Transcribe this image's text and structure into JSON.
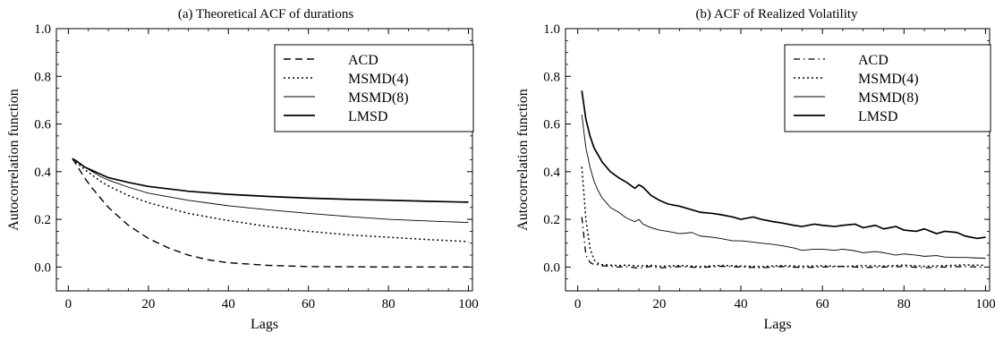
{
  "chart_data": [
    {
      "type": "line",
      "title": "(a) Theoretical ACF of durations",
      "xlabel": "Lags",
      "ylabel": "Autocorrelation function",
      "xlim": [
        -3,
        101
      ],
      "ylim": [
        -0.1,
        1.0
      ],
      "xticks": [
        0,
        20,
        40,
        60,
        80,
        100
      ],
      "yticks": [
        0.0,
        0.2,
        0.4,
        0.6,
        0.8,
        1.0
      ],
      "xtick_labels": [
        "0",
        "20",
        "40",
        "60",
        "80",
        "100"
      ],
      "ytick_labels": [
        "0.0",
        "0.2",
        "0.4",
        "0.6",
        "0.8",
        "1.0"
      ],
      "grid": false,
      "legend_position": "top-right",
      "series": [
        {
          "name": "ACD",
          "style": "dashed",
          "x": [
            1,
            2,
            4,
            6,
            8,
            10,
            15,
            20,
            25,
            30,
            35,
            40,
            50,
            60,
            70,
            80,
            90,
            100
          ],
          "y": [
            0.455,
            0.43,
            0.375,
            0.33,
            0.29,
            0.25,
            0.175,
            0.12,
            0.08,
            0.05,
            0.03,
            0.018,
            0.007,
            0.002,
            0.001,
            0.0,
            0.0,
            0.0
          ]
        },
        {
          "name": "MSMD(4)",
          "style": "dotted",
          "x": [
            1,
            2,
            4,
            6,
            8,
            10,
            15,
            20,
            30,
            40,
            50,
            60,
            70,
            80,
            90,
            100
          ],
          "y": [
            0.455,
            0.44,
            0.41,
            0.385,
            0.36,
            0.34,
            0.3,
            0.27,
            0.225,
            0.195,
            0.17,
            0.15,
            0.135,
            0.125,
            0.115,
            0.107
          ]
        },
        {
          "name": "MSMD(8)",
          "style": "thin",
          "x": [
            1,
            2,
            4,
            6,
            8,
            10,
            15,
            20,
            30,
            40,
            50,
            60,
            70,
            80,
            90,
            100
          ],
          "y": [
            0.455,
            0.445,
            0.42,
            0.4,
            0.38,
            0.365,
            0.335,
            0.31,
            0.28,
            0.257,
            0.24,
            0.225,
            0.212,
            0.2,
            0.193,
            0.187
          ]
        },
        {
          "name": "LMSD",
          "style": "thick",
          "x": [
            1,
            2,
            4,
            6,
            8,
            10,
            15,
            20,
            30,
            40,
            50,
            60,
            70,
            80,
            90,
            100
          ],
          "y": [
            0.455,
            0.445,
            0.42,
            0.405,
            0.39,
            0.375,
            0.355,
            0.338,
            0.318,
            0.305,
            0.296,
            0.289,
            0.284,
            0.28,
            0.276,
            0.272
          ]
        }
      ]
    },
    {
      "type": "line",
      "title": "(b) ACF of Realized Volatility",
      "xlabel": "Lags",
      "ylabel": "Autocorrelation function",
      "xlim": [
        -3,
        101
      ],
      "ylim": [
        -0.1,
        1.0
      ],
      "xticks": [
        0,
        20,
        40,
        60,
        80,
        100
      ],
      "yticks": [
        0.0,
        0.2,
        0.4,
        0.6,
        0.8,
        1.0
      ],
      "xtick_labels": [
        "0",
        "20",
        "40",
        "60",
        "80",
        "100"
      ],
      "ytick_labels": [
        "0.0",
        "0.2",
        "0.4",
        "0.6",
        "0.8",
        "1.0"
      ],
      "grid": false,
      "legend_position": "top-right",
      "series": [
        {
          "name": "ACD",
          "style": "dashdot",
          "x": [
            1,
            2,
            3,
            4,
            5,
            6,
            8,
            10,
            12,
            15,
            18,
            20,
            25,
            30,
            35,
            40,
            45,
            50,
            55,
            60,
            65,
            70,
            75,
            80,
            85,
            90,
            95,
            100
          ],
          "y": [
            0.21,
            0.05,
            0.02,
            0.01,
            0.01,
            0.005,
            0.003,
            0.0,
            0.002,
            -0.005,
            0.003,
            -0.004,
            0.002,
            -0.002,
            0.003,
            0.0,
            -0.003,
            0.002,
            -0.002,
            0.0,
            0.003,
            -0.002,
            0.0,
            0.002,
            -0.003,
            0.0,
            0.002,
            -0.001
          ]
        },
        {
          "name": "MSMD(4)",
          "style": "dotted",
          "x": [
            1,
            2,
            3,
            4,
            5,
            6,
            8,
            10,
            12,
            15,
            18,
            20,
            25,
            30,
            35,
            40,
            45,
            50,
            55,
            60,
            65,
            70,
            75,
            80,
            85,
            90,
            95,
            100
          ],
          "y": [
            0.42,
            0.2,
            0.08,
            0.03,
            0.015,
            0.01,
            0.008,
            0.006,
            0.008,
            0.004,
            0.007,
            0.003,
            0.006,
            0.002,
            0.007,
            0.004,
            0.002,
            0.006,
            0.003,
            0.005,
            0.002,
            0.006,
            0.004,
            0.008,
            0.003,
            0.006,
            0.009,
            0.007
          ]
        },
        {
          "name": "MSMD(8)",
          "style": "thin",
          "x": [
            1,
            2,
            3,
            4,
            5,
            6,
            7,
            8,
            10,
            12,
            14,
            15,
            16,
            18,
            20,
            22,
            25,
            28,
            30,
            33,
            35,
            38,
            40,
            43,
            45,
            48,
            50,
            53,
            55,
            58,
            60,
            63,
            65,
            68,
            70,
            73,
            75,
            78,
            80,
            83,
            85,
            88,
            90,
            93,
            95,
            98,
            100
          ],
          "y": [
            0.64,
            0.5,
            0.42,
            0.36,
            0.32,
            0.29,
            0.27,
            0.25,
            0.23,
            0.205,
            0.19,
            0.2,
            0.18,
            0.165,
            0.155,
            0.15,
            0.14,
            0.145,
            0.13,
            0.125,
            0.12,
            0.11,
            0.11,
            0.105,
            0.1,
            0.095,
            0.09,
            0.08,
            0.07,
            0.075,
            0.075,
            0.07,
            0.075,
            0.068,
            0.06,
            0.065,
            0.06,
            0.05,
            0.055,
            0.05,
            0.045,
            0.048,
            0.042,
            0.04,
            0.04,
            0.038,
            0.037
          ]
        },
        {
          "name": "LMSD",
          "style": "thick",
          "x": [
            1,
            2,
            3,
            4,
            5,
            6,
            7,
            8,
            10,
            12,
            14,
            15,
            16,
            18,
            20,
            22,
            25,
            28,
            30,
            33,
            35,
            38,
            40,
            43,
            45,
            48,
            50,
            53,
            55,
            58,
            60,
            63,
            65,
            68,
            70,
            73,
            75,
            78,
            80,
            83,
            85,
            88,
            90,
            93,
            95,
            98,
            100
          ],
          "y": [
            0.74,
            0.62,
            0.55,
            0.5,
            0.47,
            0.44,
            0.42,
            0.4,
            0.375,
            0.355,
            0.33,
            0.345,
            0.335,
            0.3,
            0.28,
            0.265,
            0.255,
            0.24,
            0.23,
            0.225,
            0.22,
            0.21,
            0.2,
            0.21,
            0.2,
            0.19,
            0.185,
            0.175,
            0.17,
            0.18,
            0.175,
            0.17,
            0.175,
            0.18,
            0.165,
            0.175,
            0.16,
            0.17,
            0.155,
            0.15,
            0.16,
            0.14,
            0.15,
            0.145,
            0.13,
            0.12,
            0.125
          ]
        }
      ]
    }
  ]
}
